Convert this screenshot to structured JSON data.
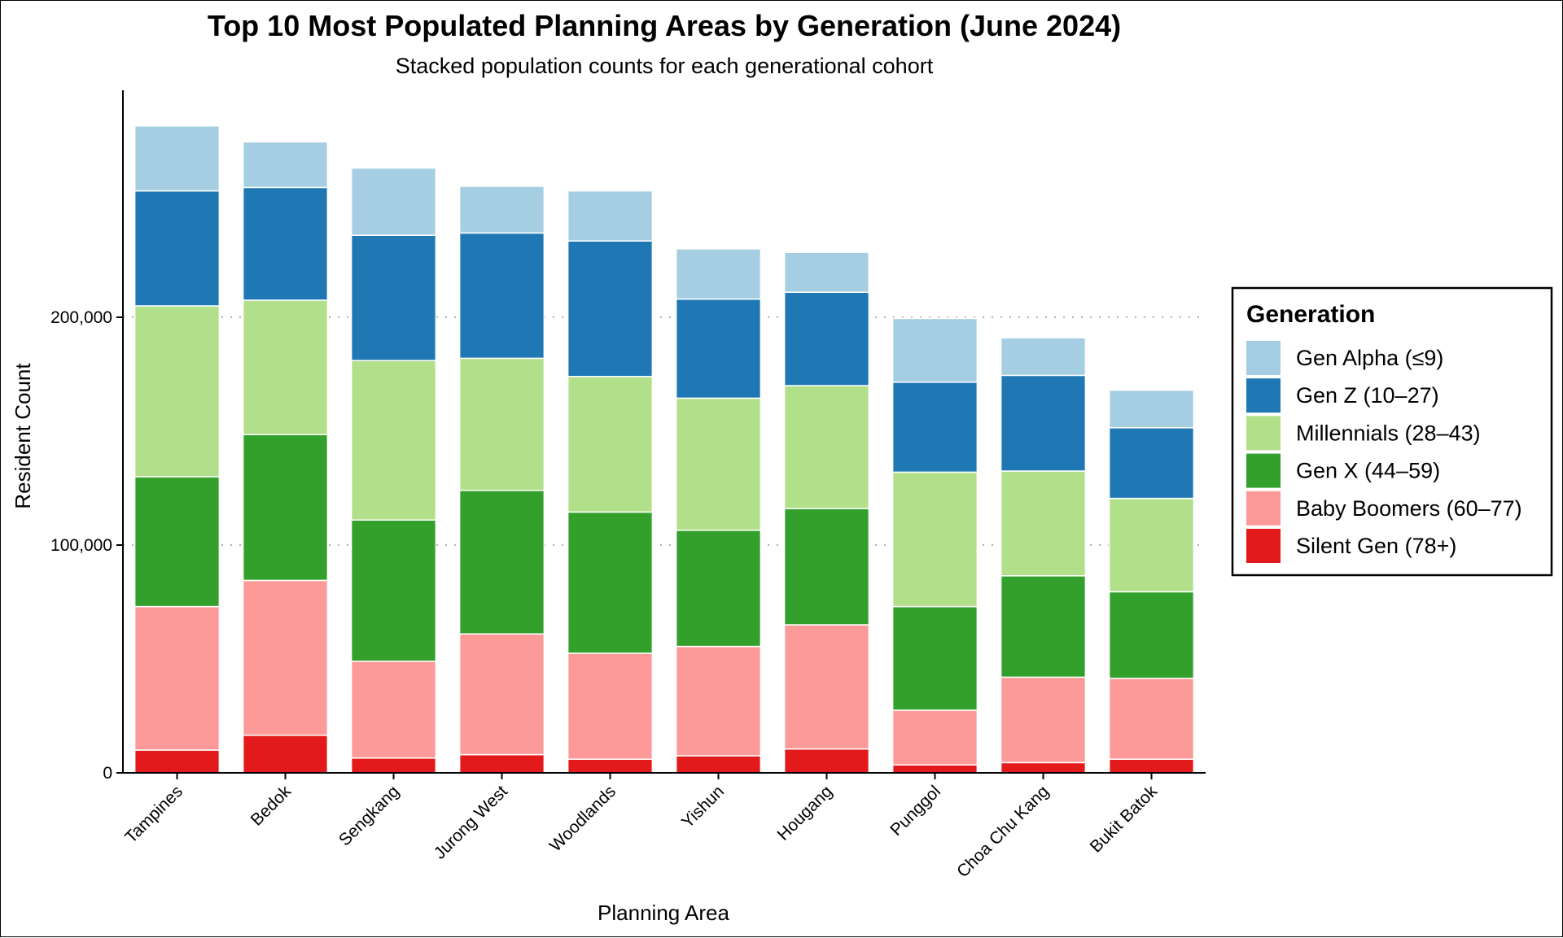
{
  "chart_data": {
    "type": "bar",
    "stacked": true,
    "title": "Top 10 Most Populated Planning Areas by Generation (June 2024)",
    "subtitle": "Stacked population counts for each generational cohort",
    "xlabel": "Planning Area",
    "ylabel": "Resident Count",
    "ylim": [
      0,
      300000
    ],
    "yticks": [
      0,
      100000,
      200000
    ],
    "ytick_labels": [
      "0",
      "100,000",
      "200,000"
    ],
    "grid": "horizontal dotted at major ticks",
    "legend": {
      "title": "Generation",
      "position": "right"
    },
    "categories": [
      "Tampines",
      "Bedok",
      "Sengkang",
      "Jurong West",
      "Woodlands",
      "Yishun",
      "Hougang",
      "Punggol",
      "Choa Chu Kang",
      "Bukit Batok"
    ],
    "series": [
      {
        "name": "Silent Gen (78+)",
        "color": "#E31A1C",
        "values": [
          10000,
          16500,
          6500,
          8000,
          6000,
          7500,
          10500,
          3500,
          4500,
          6000
        ]
      },
      {
        "name": "Baby Boomers (60–77)",
        "color": "#FB9A99",
        "values": [
          63000,
          68000,
          42500,
          53000,
          46500,
          48000,
          54500,
          24000,
          37500,
          35500
        ]
      },
      {
        "name": "Gen X (44–59)",
        "color": "#33A02C",
        "values": [
          57000,
          64000,
          62000,
          63000,
          62000,
          51000,
          51000,
          45500,
          44500,
          38000
        ]
      },
      {
        "name": "Millennials (28–43)",
        "color": "#B2DF8A",
        "values": [
          75000,
          59000,
          70000,
          58000,
          59500,
          58000,
          54000,
          59000,
          46000,
          41000
        ]
      },
      {
        "name": "Gen Z (10–27)",
        "color": "#1F78B4",
        "values": [
          50500,
          49500,
          55000,
          55000,
          59500,
          43500,
          41000,
          39500,
          42000,
          31000
        ]
      },
      {
        "name": "Gen Alpha (≤9)",
        "color": "#A6CEE3",
        "values": [
          28500,
          20000,
          29500,
          20500,
          22000,
          22000,
          17500,
          28000,
          16500,
          16500
        ]
      }
    ]
  }
}
